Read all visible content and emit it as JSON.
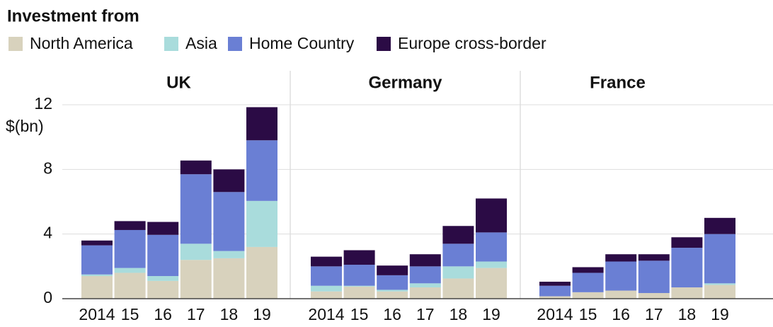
{
  "chart_data": {
    "type": "stacked-bar",
    "title": "Investment from",
    "y_label": "$(bn)",
    "categories": [
      "2014",
      "15",
      "16",
      "17",
      "18",
      "19"
    ],
    "series": [
      {
        "name": "North America",
        "color": "#d8d2bd"
      },
      {
        "name": "Asia",
        "color": "#a9dcdc"
      },
      {
        "name": "Home Country",
        "color": "#6a7fd4"
      },
      {
        "name": "Europe cross-border",
        "color": "#2b0b45"
      }
    ],
    "panels": [
      {
        "title": "UK",
        "values": [
          [
            1.4,
            1.6,
            1.1,
            2.4,
            2.5,
            3.2
          ],
          [
            0.1,
            0.3,
            0.3,
            1.0,
            0.45,
            2.85
          ],
          [
            1.8,
            2.35,
            2.55,
            4.3,
            3.65,
            3.75
          ],
          [
            0.3,
            0.55,
            0.8,
            0.85,
            1.4,
            2.05
          ]
        ]
      },
      {
        "title": "Germany",
        "values": [
          [
            0.45,
            0.75,
            0.45,
            0.7,
            1.25,
            1.9
          ],
          [
            0.35,
            0.05,
            0.1,
            0.25,
            0.75,
            0.4
          ],
          [
            1.2,
            1.3,
            0.9,
            1.05,
            1.4,
            1.8
          ],
          [
            0.6,
            0.9,
            0.6,
            0.75,
            1.1,
            2.1
          ]
        ]
      },
      {
        "title": "France",
        "values": [
          [
            0.15,
            0.4,
            0.5,
            0.35,
            0.7,
            0.85
          ],
          [
            0,
            0,
            0,
            0,
            0,
            0.1
          ],
          [
            0.65,
            1.2,
            1.8,
            2.0,
            2.45,
            3.05
          ],
          [
            0.25,
            0.35,
            0.45,
            0.4,
            0.65,
            1.0
          ]
        ]
      }
    ],
    "ylim": [
      0,
      12
    ],
    "yticks": [
      0,
      4,
      8,
      12
    ],
    "grid": true
  }
}
